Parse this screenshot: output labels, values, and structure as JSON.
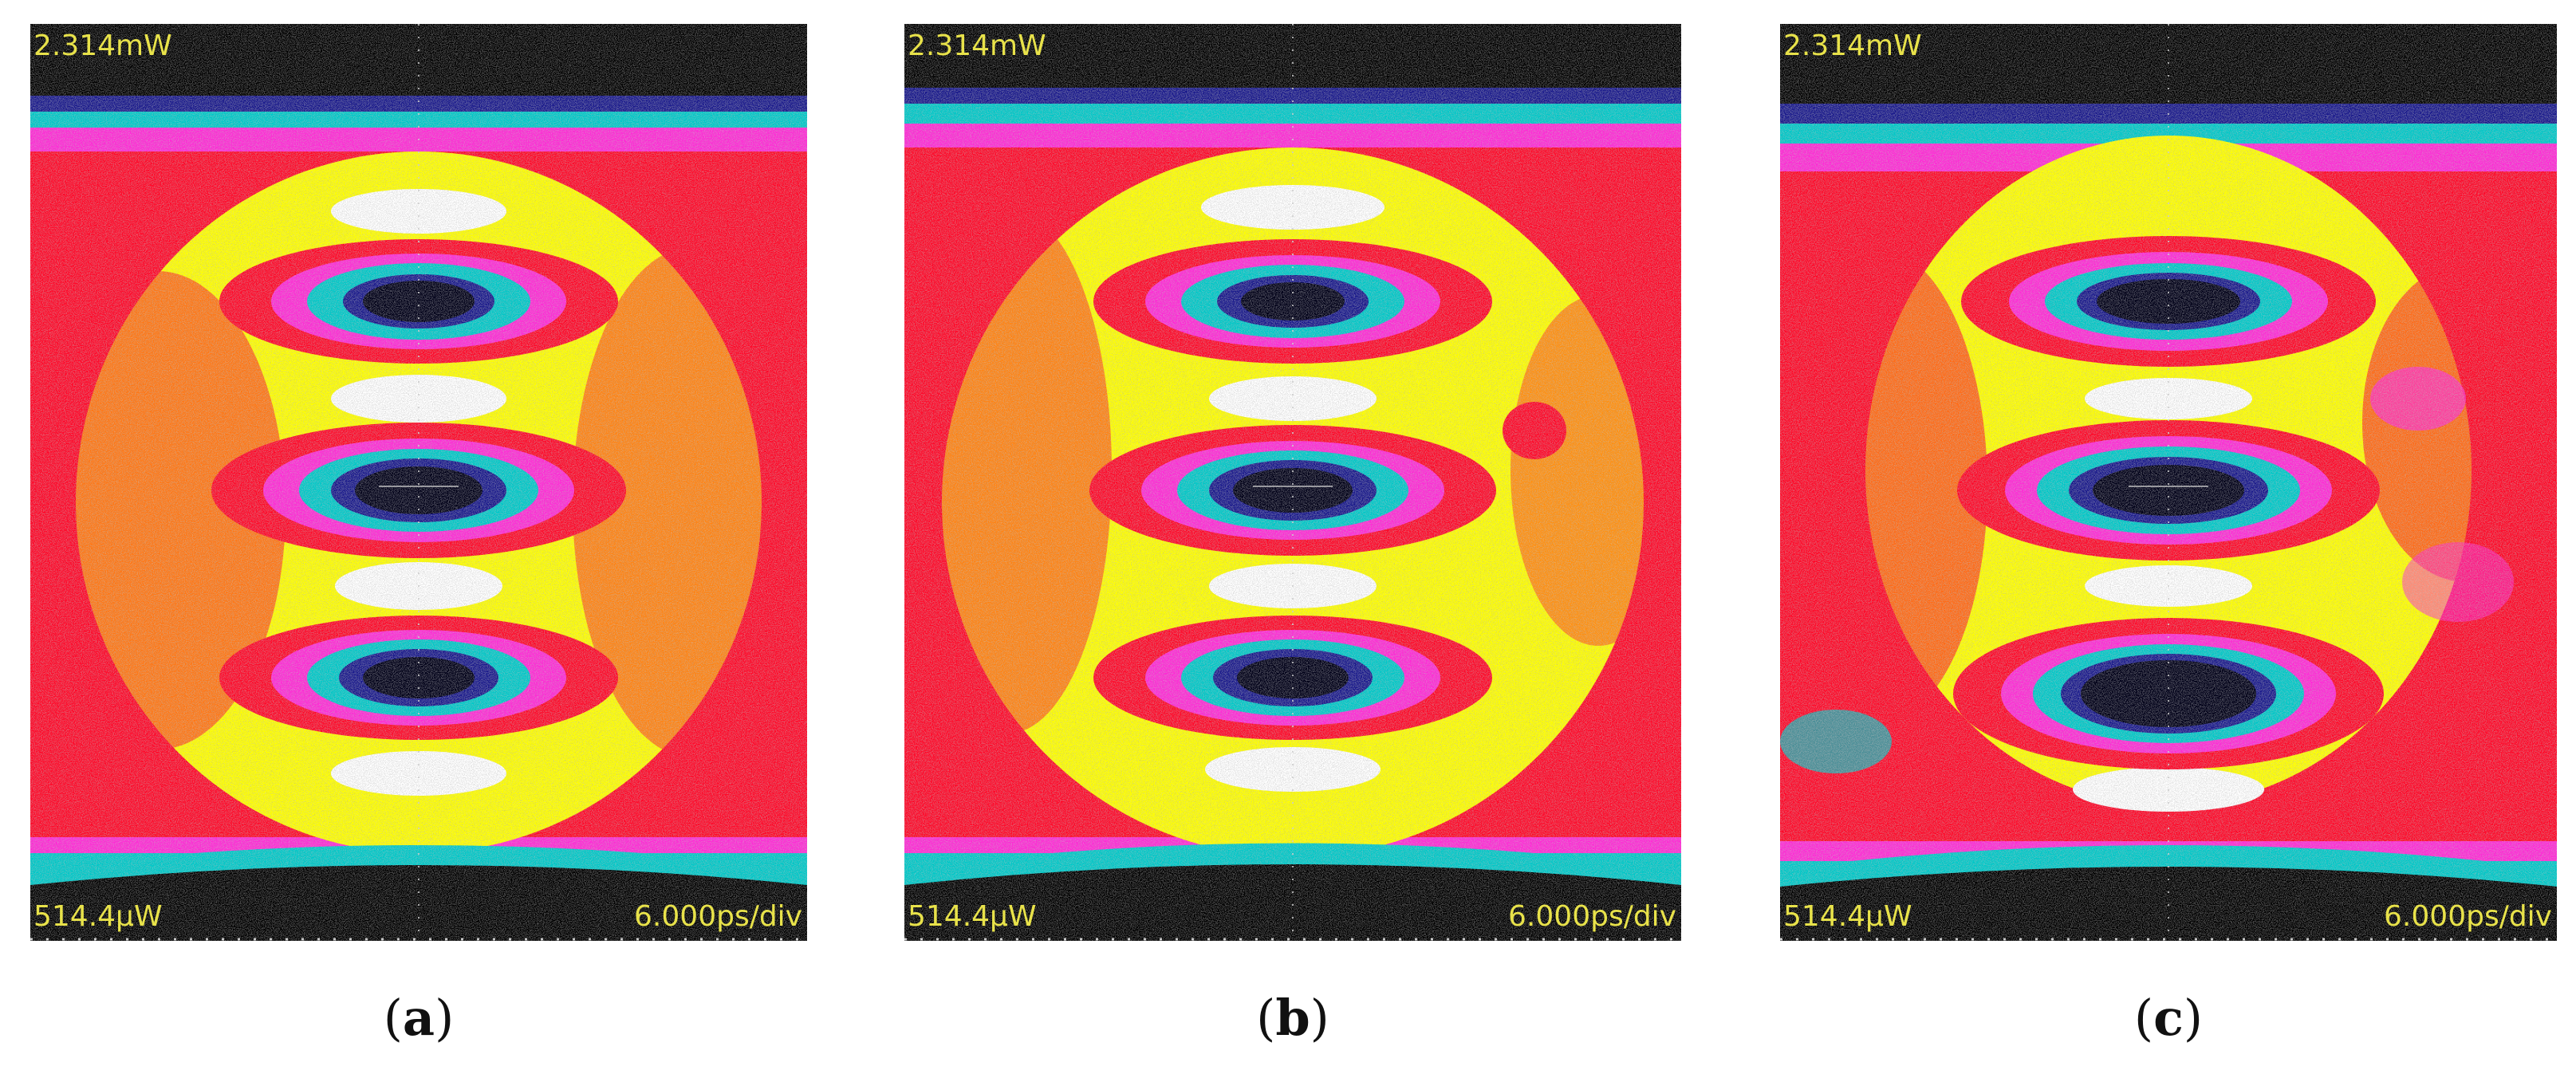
{
  "colors": {
    "background": "#000000",
    "label": "#e8e24a",
    "density_low": "#1a1a8c",
    "density_cyan": "#00c8c8",
    "density_magenta": "#ff2bd6",
    "density_red": "#ff0a2a",
    "density_yellow": "#ffff00",
    "density_peak": "#ffffff"
  },
  "panels": [
    {
      "id": "a",
      "top_label": "2.314mW",
      "bottom_left_label": "514.4μW",
      "bottom_right_label": "6.000ps/div",
      "caption_letter": "a",
      "caption_open": "(",
      "caption_close": ")"
    },
    {
      "id": "b",
      "top_label": "2.314mW",
      "bottom_left_label": "514.4μW",
      "bottom_right_label": "6.000ps/div",
      "caption_letter": "b",
      "caption_open": "(",
      "caption_close": ")"
    },
    {
      "id": "c",
      "top_label": "2.314mW",
      "bottom_left_label": "514.4μW",
      "bottom_right_label": "6.000ps/div",
      "caption_letter": "c",
      "caption_open": "(",
      "caption_close": ")"
    }
  ]
}
